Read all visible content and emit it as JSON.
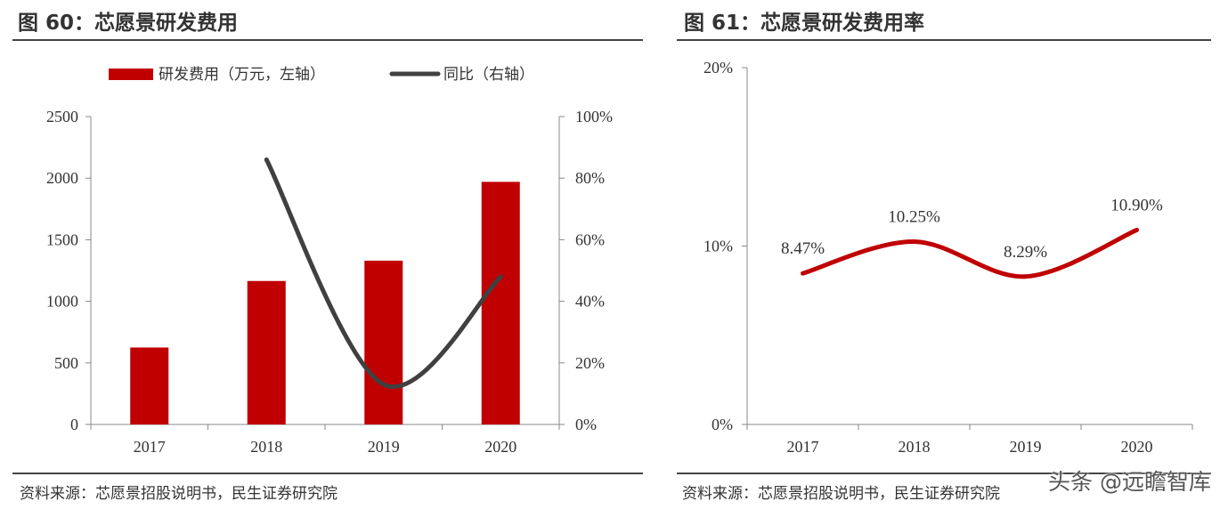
{
  "chart_data": [
    {
      "type": "bar",
      "title": "图 60：芯愿景研发费用",
      "source": "资料来源：芯愿景招股说明书，民生证券研究院",
      "categories": [
        "2017",
        "2018",
        "2019",
        "2020"
      ],
      "series": [
        {
          "name": "研发费用（万元，左轴）",
          "type": "bar",
          "axis": "left",
          "color": "#C00000",
          "values": [
            625,
            1165,
            1330,
            1970
          ]
        },
        {
          "name": "同比（右轴）",
          "type": "line",
          "axis": "right",
          "color": "#404040",
          "values": [
            null,
            86,
            13,
            48
          ]
        }
      ],
      "ylim_left": [
        0,
        2500
      ],
      "yticks_left": [
        "0",
        "500",
        "1000",
        "1500",
        "2000",
        "2500"
      ],
      "ylim_right": [
        0,
        100
      ],
      "yticks_right": [
        "0%",
        "20%",
        "40%",
        "60%",
        "80%",
        "100%"
      ],
      "grid": false,
      "legend": "top"
    },
    {
      "type": "line",
      "title": "图 61：芯愿景研发费用率",
      "source": "资料来源：芯愿景招股说明书，民生证券研究院",
      "categories": [
        "2017",
        "2018",
        "2019",
        "2020"
      ],
      "series": [
        {
          "color": "#C00000",
          "values": [
            8.47,
            10.25,
            8.29,
            10.9
          ],
          "labels": [
            "8.47%",
            "10.25%",
            "8.29%",
            "10.90%"
          ]
        }
      ],
      "ylim": [
        0,
        20
      ],
      "yticks": [
        "0%",
        "10%",
        "20%"
      ],
      "grid": false
    }
  ],
  "watermark": "头条 @远瞻智库"
}
